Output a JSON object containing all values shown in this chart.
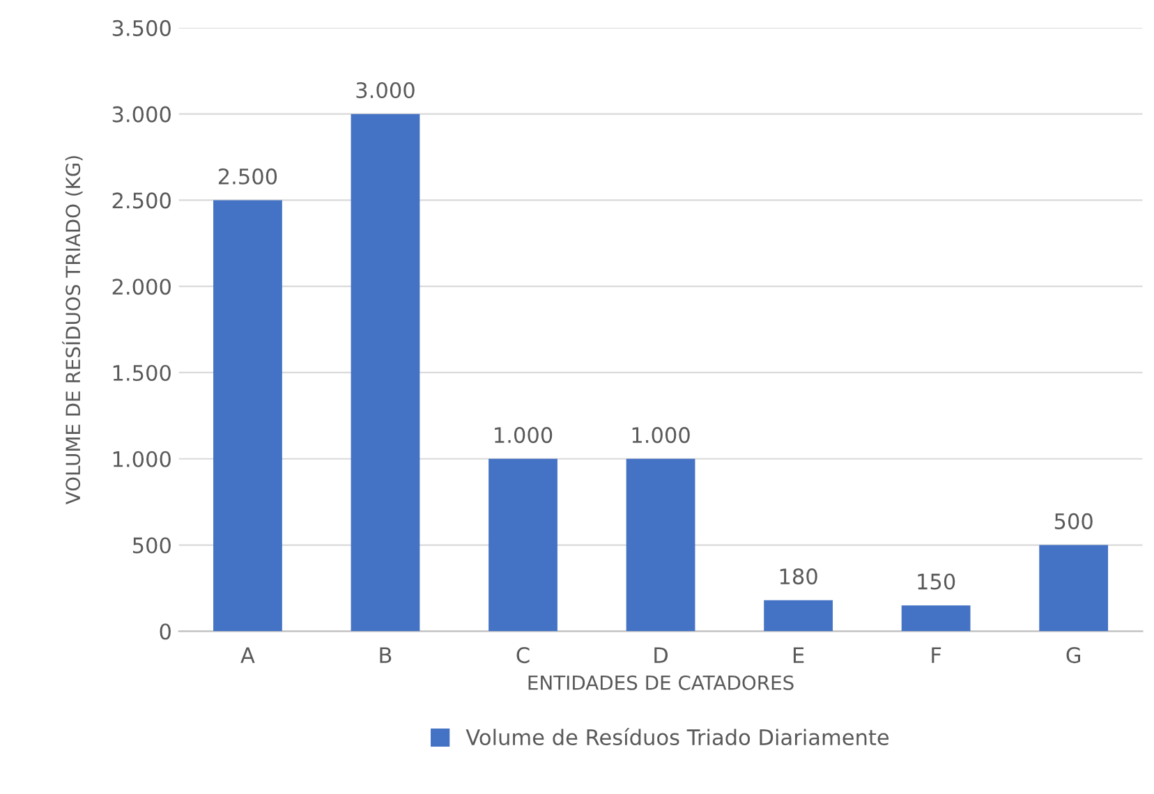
{
  "chart_data": {
    "type": "bar",
    "xlabel": "ENTIDADES DE CATADORES",
    "ylabel": "VOLUME DE RESÍDUOS TRIADO (KG)",
    "categories": [
      "A",
      "B",
      "C",
      "D",
      "E",
      "F",
      "G"
    ],
    "series": [
      {
        "name": "Volume de Resíduos Triado Diariamente",
        "color": "#4472c4",
        "values": [
          2500,
          3000,
          1000,
          1000,
          180,
          150,
          500
        ],
        "value_labels": [
          "2.500",
          "3.000",
          "1.000",
          "1.000",
          "180",
          "150",
          "500"
        ]
      }
    ],
    "ylim": [
      0,
      3500
    ],
    "yticks": [
      {
        "value": 0,
        "label": "0"
      },
      {
        "value": 500,
        "label": "500"
      },
      {
        "value": 1000,
        "label": "1.000"
      },
      {
        "value": 1500,
        "label": "1.500"
      },
      {
        "value": 2000,
        "label": "2.000"
      },
      {
        "value": 2500,
        "label": "2.500"
      },
      {
        "value": 3000,
        "label": "3.000"
      },
      {
        "value": 3500,
        "label": "3.500"
      }
    ],
    "grid": "y",
    "legend": "bottom"
  }
}
